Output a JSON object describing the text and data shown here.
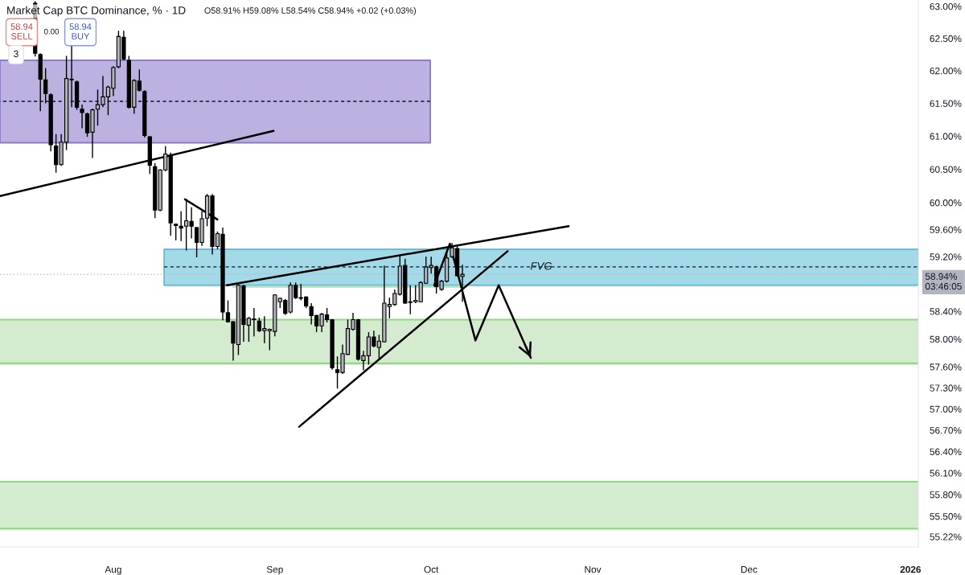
{
  "chart_data": {
    "type": "candlestick",
    "title": "Market Cap BTC Dominance, % · 1D",
    "subtitle": "O58.91% H59.08% L58.54% C58.94% +0.02 (+0.03%)",
    "annotations": [
      "58.94\nSELL",
      "0.00",
      "58.94\nBUY",
      "3"
    ],
    "log": true,
    "xlim": [
      "2025-07-10T06:00",
      "2026-01-02T12:00"
    ],
    "ylim": [
      55.08,
      63.1
    ],
    "xticks": [
      {
        "value": "2025-08-01",
        "label": "Aug"
      },
      {
        "value": "2025-09-01",
        "label": "Sep"
      },
      {
        "value": "2025-10-01",
        "label": "Oct"
      },
      {
        "value": "2025-11-01",
        "label": "Nov"
      },
      {
        "value": "2025-12-01",
        "label": "Dec"
      },
      {
        "value": "2026-01-01",
        "label": "2026"
      }
    ],
    "yticks": [
      {
        "value": 63.0,
        "label": "63.00%"
      },
      {
        "value": 62.5,
        "label": "62.50%"
      },
      {
        "value": 62.0,
        "label": "62.00%"
      },
      {
        "value": 61.5,
        "label": "61.50%"
      },
      {
        "value": 61.0,
        "label": "61.00%"
      },
      {
        "value": 60.5,
        "label": "60.50%"
      },
      {
        "value": 60.0,
        "label": "60.00%"
      },
      {
        "value": 59.6,
        "label": "59.60%"
      },
      {
        "value": 59.2,
        "label": "59.20%"
      },
      {
        "value": 58.4,
        "label": "58.40%"
      },
      {
        "value": 58.0,
        "label": "58.00%"
      },
      {
        "value": 57.6,
        "label": "57.60%"
      },
      {
        "value": 57.3,
        "label": "57.30%"
      },
      {
        "value": 57.0,
        "label": "57.00%"
      },
      {
        "value": 56.7,
        "label": "56.70%"
      },
      {
        "value": 56.4,
        "label": "56.40%"
      },
      {
        "value": 56.1,
        "label": "56.10%"
      },
      {
        "value": 55.8,
        "label": "55.80%"
      },
      {
        "value": 55.5,
        "label": "55.50%"
      },
      {
        "value": 55.22,
        "label": "55.22%"
      }
    ],
    "x": [
      "2025-07-17",
      "2025-07-18",
      "2025-07-19",
      "2025-07-20",
      "2025-07-21",
      "2025-07-22",
      "2025-07-23",
      "2025-07-24",
      "2025-07-25",
      "2025-07-26",
      "2025-07-27",
      "2025-07-28",
      "2025-07-29",
      "2025-07-30",
      "2025-07-31",
      "2025-08-01",
      "2025-08-02",
      "2025-08-03",
      "2025-08-04",
      "2025-08-05",
      "2025-08-06",
      "2025-08-07",
      "2025-08-08",
      "2025-08-09",
      "2025-08-10",
      "2025-08-11",
      "2025-08-12",
      "2025-08-13",
      "2025-08-14",
      "2025-08-15",
      "2025-08-16",
      "2025-08-17",
      "2025-08-18",
      "2025-08-19",
      "2025-08-20",
      "2025-08-21",
      "2025-08-22",
      "2025-08-23",
      "2025-08-24",
      "2025-08-25",
      "2025-08-26",
      "2025-08-27",
      "2025-08-28",
      "2025-08-29",
      "2025-08-30",
      "2025-08-31",
      "2025-09-01",
      "2025-09-02",
      "2025-09-03",
      "2025-09-04",
      "2025-09-05",
      "2025-09-06",
      "2025-09-07",
      "2025-09-08",
      "2025-09-09",
      "2025-09-10",
      "2025-09-11",
      "2025-09-12",
      "2025-09-13",
      "2025-09-14",
      "2025-09-15",
      "2025-09-16",
      "2025-09-17",
      "2025-09-18",
      "2025-09-19",
      "2025-09-20",
      "2025-09-21",
      "2025-09-22",
      "2025-09-23",
      "2025-09-24",
      "2025-09-25",
      "2025-09-26",
      "2025-09-27",
      "2025-09-28",
      "2025-09-29",
      "2025-09-30",
      "2025-10-01",
      "2025-10-02",
      "2025-10-03",
      "2025-10-04",
      "2025-10-05",
      "2025-10-06",
      "2025-10-07"
    ],
    "ohlc": [
      [
        63.05,
        63.08,
        62.22,
        62.27
      ],
      [
        62.25,
        62.27,
        61.38,
        61.87
      ],
      [
        61.86,
        62.04,
        61.5,
        61.65
      ],
      [
        61.63,
        61.65,
        60.77,
        60.87
      ],
      [
        60.85,
        61.03,
        60.45,
        60.57
      ],
      [
        60.57,
        61.03,
        60.55,
        60.91
      ],
      [
        60.91,
        62.23,
        60.79,
        61.88
      ],
      [
        61.87,
        62.39,
        61.44,
        61.86
      ],
      [
        61.83,
        61.85,
        61.4,
        61.44
      ],
      [
        61.41,
        61.48,
        61.12,
        61.36
      ],
      [
        61.34,
        61.36,
        60.99,
        61.05
      ],
      [
        61.06,
        61.42,
        60.67,
        61.4
      ],
      [
        61.41,
        61.71,
        61.16,
        61.48
      ],
      [
        61.48,
        61.92,
        61.44,
        61.6
      ],
      [
        61.6,
        61.77,
        61.32,
        61.75
      ],
      [
        61.73,
        62.07,
        61.61,
        62.05
      ],
      [
        62.06,
        62.62,
        62.04,
        62.53
      ],
      [
        62.52,
        62.62,
        62.16,
        62.18
      ],
      [
        62.16,
        62.23,
        61.42,
        61.44
      ],
      [
        61.44,
        61.87,
        61.34,
        61.85
      ],
      [
        61.84,
        62.02,
        61.68,
        61.7
      ],
      [
        61.68,
        61.7,
        60.98,
        61.01
      ],
      [
        60.99,
        61.0,
        60.43,
        60.56
      ],
      [
        60.54,
        60.59,
        59.77,
        59.89
      ],
      [
        59.89,
        60.5,
        59.87,
        60.49
      ],
      [
        60.49,
        60.85,
        60.47,
        60.73
      ],
      [
        60.71,
        60.75,
        59.51,
        59.7
      ],
      [
        59.68,
        59.69,
        59.44,
        59.66
      ],
      [
        59.65,
        59.87,
        59.43,
        59.62
      ],
      [
        59.65,
        60.05,
        59.29,
        59.73
      ],
      [
        59.72,
        59.93,
        59.47,
        59.65
      ],
      [
        59.63,
        59.64,
        59.19,
        59.41
      ],
      [
        59.41,
        59.87,
        59.36,
        59.76
      ],
      [
        59.77,
        60.13,
        59.65,
        60.1
      ],
      [
        60.1,
        60.13,
        59.23,
        59.35
      ],
      [
        59.35,
        59.57,
        59.31,
        59.54
      ],
      [
        59.53,
        59.63,
        58.27,
        58.39
      ],
      [
        58.38,
        58.56,
        58.24,
        58.25
      ],
      [
        58.25,
        58.26,
        57.69,
        57.94
      ],
      [
        57.92,
        58.8,
        57.77,
        58.78
      ],
      [
        58.77,
        58.79,
        57.96,
        58.21
      ],
      [
        58.2,
        58.32,
        57.96,
        58.3
      ],
      [
        58.29,
        58.45,
        58.04,
        58.28
      ],
      [
        58.26,
        58.31,
        58.1,
        58.12
      ],
      [
        58.12,
        58.33,
        57.94,
        58.15
      ],
      [
        58.12,
        58.15,
        57.84,
        58.14
      ],
      [
        58.11,
        58.65,
        58.04,
        58.64
      ],
      [
        58.54,
        58.6,
        58.45,
        58.59
      ],
      [
        58.56,
        58.58,
        58.35,
        58.37
      ],
      [
        58.39,
        58.82,
        58.37,
        58.78
      ],
      [
        58.78,
        58.82,
        58.58,
        58.6
      ],
      [
        58.6,
        58.8,
        58.56,
        58.59
      ],
      [
        58.61,
        58.62,
        58.45,
        58.48
      ],
      [
        58.47,
        58.52,
        58.21,
        58.34
      ],
      [
        58.34,
        58.35,
        58.1,
        58.19
      ],
      [
        58.19,
        58.38,
        58.1,
        58.36
      ],
      [
        58.35,
        58.45,
        58.24,
        58.28
      ],
      [
        58.28,
        58.29,
        57.56,
        57.59
      ],
      [
        57.56,
        57.75,
        57.29,
        57.52
      ],
      [
        57.52,
        57.92,
        57.5,
        57.79
      ],
      [
        57.78,
        58.28,
        57.77,
        58.15
      ],
      [
        58.14,
        58.38,
        58.12,
        58.28
      ],
      [
        58.28,
        58.29,
        57.69,
        57.71
      ],
      [
        57.69,
        57.83,
        57.55,
        57.76
      ],
      [
        57.76,
        58.1,
        57.63,
        58.03
      ],
      [
        58.03,
        58.12,
        57.88,
        57.9
      ],
      [
        57.88,
        58.06,
        57.72,
        57.97
      ],
      [
        57.96,
        59.07,
        57.95,
        58.52
      ],
      [
        58.47,
        58.6,
        58.3,
        58.5
      ],
      [
        58.5,
        58.72,
        58.48,
        58.66
      ],
      [
        58.65,
        59.22,
        58.63,
        59.06
      ],
      [
        59.07,
        59.17,
        58.51,
        58.52
      ],
      [
        58.53,
        58.78,
        58.36,
        58.54
      ],
      [
        58.54,
        58.78,
        58.52,
        58.56
      ],
      [
        58.54,
        58.84,
        58.53,
        58.82
      ],
      [
        58.81,
        59.2,
        58.8,
        59.05
      ],
      [
        59.04,
        59.2,
        58.95,
        59.07
      ],
      [
        59.05,
        59.07,
        58.66,
        58.76
      ],
      [
        58.72,
        58.86,
        58.7,
        58.84
      ],
      [
        58.84,
        59.31,
        58.82,
        59.18
      ],
      [
        59.2,
        59.4,
        59.18,
        59.33
      ],
      [
        59.32,
        59.38,
        58.91,
        58.92
      ],
      [
        58.91,
        59.08,
        58.54,
        58.94
      ]
    ],
    "colors": [
      "#000000",
      "#000000",
      "#000000",
      "#000000",
      "#000000",
      "#b4b6bd",
      "#b4b6bd",
      "#000000",
      "#000000",
      "#000000",
      "#000000",
      "#b4b6bd",
      "#b4b6bd",
      "#b4b6bd",
      "#b4b6bd",
      "#b4b6bd",
      "#b4b6bd",
      "#000000",
      "#000000",
      "#b4b6bd",
      "#000000",
      "#000000",
      "#000000",
      "#000000",
      "#b4b6bd",
      "#b4b6bd",
      "#000000",
      "#000000",
      "#000000",
      "#b4b6bd",
      "#000000",
      "#000000",
      "#b4b6bd",
      "#b4b6bd",
      "#000000",
      "#b4b6bd",
      "#000000",
      "#000000",
      "#000000",
      "#b4b6bd",
      "#000000",
      "#b4b6bd",
      "#000000",
      "#000000",
      "#b4b6bd",
      "#b4b6bd",
      "#b4b6bd",
      "#b4b6bd",
      "#000000",
      "#b4b6bd",
      "#000000",
      "#000000",
      "#000000",
      "#000000",
      "#000000",
      "#b4b6bd",
      "#000000",
      "#000000",
      "#000000",
      "#b4b6bd",
      "#b4b6bd",
      "#b4b6bd",
      "#000000",
      "#b4b6bd",
      "#b4b6bd",
      "#000000",
      "#b4b6bd",
      "#b4b6bd",
      "#b4b6bd",
      "#b4b6bd",
      "#b4b6bd",
      "#000000",
      "#b4b6bd",
      "#b4b6bd",
      "#b4b6bd",
      "#b4b6bd",
      "#b4b6bd",
      "#000000",
      "#b4b6bd",
      "#b4b6bd",
      "#b4b6bd",
      "#000000",
      "#b4b6bd"
    ],
    "series": [
      {
        "type": "line",
        "x": [
          "2025-07-10T06:00",
          "2025-09-30T20:00"
        ],
        "values": [
          62.16,
          62.16
        ],
        "lower": [
          60.9,
          60.9
        ],
        "upper": [
          62.16,
          62.16
        ],
        "color": "#8c79c9"
      },
      {
        "type": "line",
        "x": [
          "2025-07-10T06:00",
          "2025-09-30T20:00"
        ],
        "values": [
          61.53,
          61.53
        ],
        "color": "#131722",
        "line_style": "dashed"
      },
      {
        "type": "line",
        "x": [
          "2025-08-10T18:00",
          "2026-01-02T12:00"
        ],
        "values": [
          59.31,
          59.31
        ],
        "lower": [
          58.78,
          58.78
        ],
        "upper": [
          59.31,
          59.31
        ],
        "color": "#62bed6"
      },
      {
        "type": "line",
        "name": "FVG",
        "x": [
          "2025-08-10T18:00",
          "2026-01-02T12:00"
        ],
        "values": [
          59.05,
          59.05
        ],
        "color": "#131722",
        "line_style": "dashed"
      },
      {
        "type": "line",
        "x": [
          "2025-08-24T00:00",
          "2025-10-07T12:00"
        ],
        "values": [
          58.76,
          58.76
        ],
        "color": "#bcdfb3"
      },
      {
        "type": "line",
        "x": [
          "2025-07-10T06:00",
          "2025-08-31T18:00"
        ],
        "values": [
          60.1,
          61.08
        ],
        "color": "#000000"
      },
      {
        "type": "line",
        "x": [
          "2025-08-14T18:00",
          "2025-08-20T23:00"
        ],
        "values": [
          60.05,
          59.75
        ],
        "color": "#000000"
      },
      {
        "type": "line",
        "x": [
          "2025-08-22T18:00",
          "2025-10-27T09:00"
        ],
        "values": [
          58.78,
          59.65
        ],
        "color": "#000000"
      },
      {
        "type": "line",
        "x": [
          "2025-09-05T16:00",
          "2025-10-15T16:00"
        ],
        "values": [
          56.75,
          59.28
        ],
        "color": "#000000"
      },
      {
        "type": "line",
        "x": [
          "2025-10-01T14:00",
          "2025-10-04T14:00",
          "2025-10-09T12:00",
          "2025-10-13T23:00",
          "2025-10-20T03:00"
        ],
        "values": [
          58.78,
          59.39,
          57.98,
          58.78,
          57.73
        ],
        "color": "#000000"
      }
    ],
    "bands": [
      {
        "axis": "y",
        "from": 57.65,
        "to": 58.28,
        "color": "#d4ebcf"
      },
      {
        "axis": "y",
        "from": 55.33,
        "to": 55.98,
        "color": "#d4ebcf"
      }
    ],
    "ref_lines": [
      {
        "axis": "y",
        "value": 58.94,
        "label": "58.94%\n03:46:05",
        "color": "#b2b5be",
        "line_style": "dotted"
      }
    ]
  }
}
